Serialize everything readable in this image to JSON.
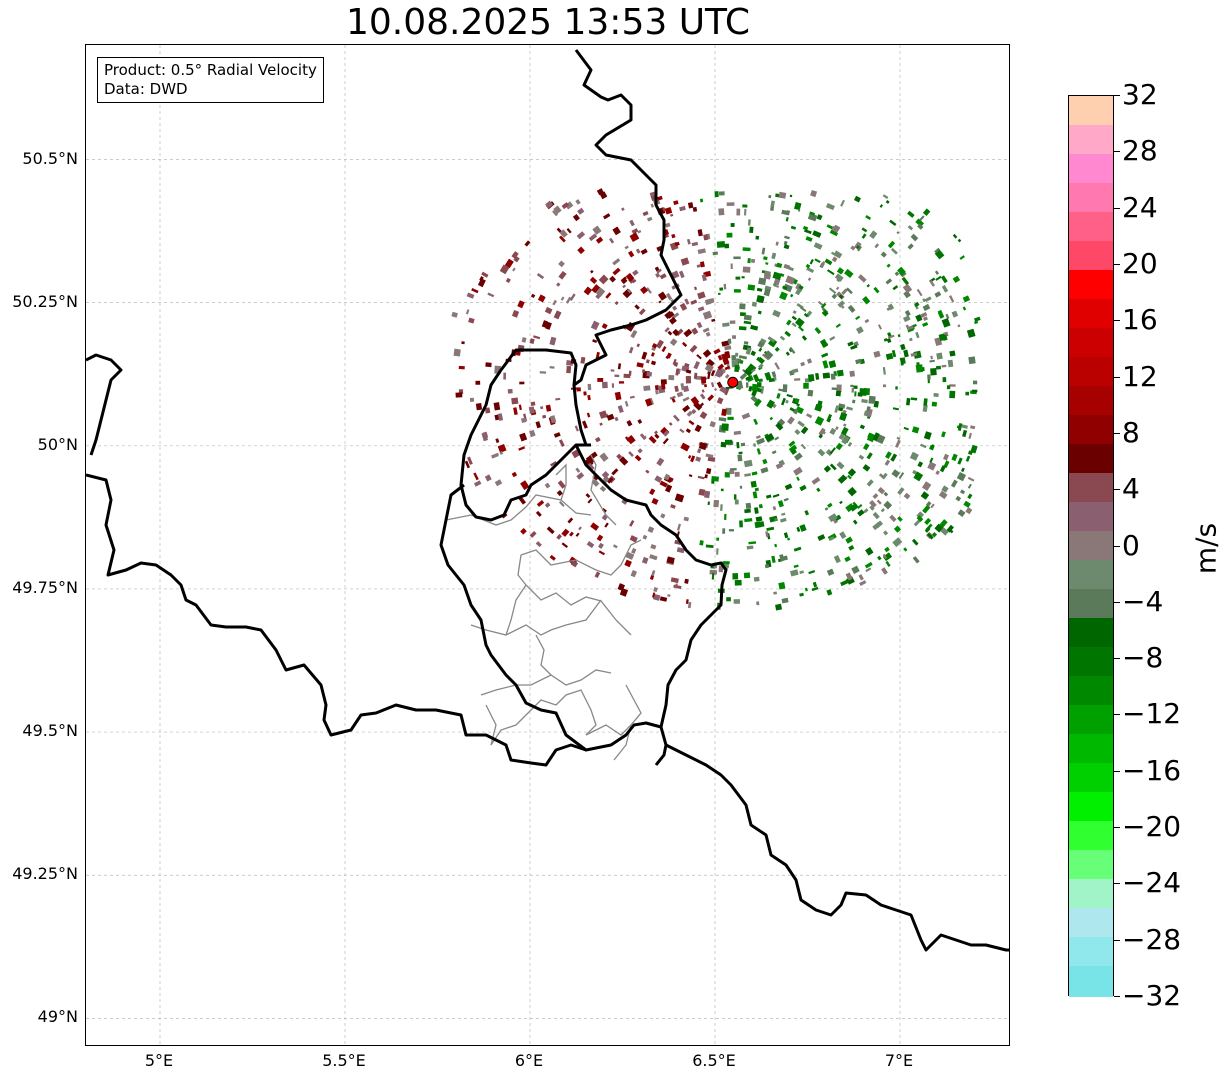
{
  "title": "10.08.2025 13:53 UTC",
  "info": {
    "product": "Product: 0.5° Radial Velocity",
    "source": "Data: DWD"
  },
  "map": {
    "lon_range": [
      4.8,
      7.3
    ],
    "lat_range": [
      48.95,
      50.7
    ],
    "lon_ticks": [
      5.0,
      5.5,
      6.0,
      6.5,
      7.0
    ],
    "lon_tick_labels": [
      "5°E",
      "5.5°E",
      "6°E",
      "6.5°E",
      "7°E"
    ],
    "lat_ticks": [
      49.0,
      49.25,
      49.5,
      49.75,
      50.0,
      50.25,
      50.5
    ],
    "lat_tick_labels": [
      "49°N",
      "49.25°N",
      "49.5°N",
      "49.75°N",
      "50°N",
      "50.25°N",
      "50.5°N"
    ],
    "gridlines": true,
    "radar_site": {
      "lon": 6.548,
      "lat": 50.111,
      "color": "#ff0000"
    }
  },
  "colorbar": {
    "unit": "m/s",
    "vmin": -32,
    "vmax": 32,
    "tick_labels": [
      "32",
      "28",
      "24",
      "20",
      "16",
      "12",
      "8",
      "4",
      "0",
      "−4",
      "−8",
      "−12",
      "−16",
      "−20",
      "−24",
      "−28",
      "−32"
    ],
    "colors_top_to_bottom": [
      "#ffd0b0",
      "#ffa8c8",
      "#ff88d0",
      "#ff78b0",
      "#ff6088",
      "#ff4868",
      "#ff0000",
      "#e00000",
      "#cc0000",
      "#bb0000",
      "#a60000",
      "#900000",
      "#6a0000",
      "#8a4850",
      "#8a6070",
      "#8a7878",
      "#6e8a6e",
      "#5a7a5a",
      "#006600",
      "#007500",
      "#008800",
      "#00a000",
      "#00b800",
      "#00d000",
      "#00f000",
      "#30ff30",
      "#68ff78",
      "#a0f4c8",
      "#aee8ee",
      "#90e8ec",
      "#78e4e8"
    ]
  }
}
